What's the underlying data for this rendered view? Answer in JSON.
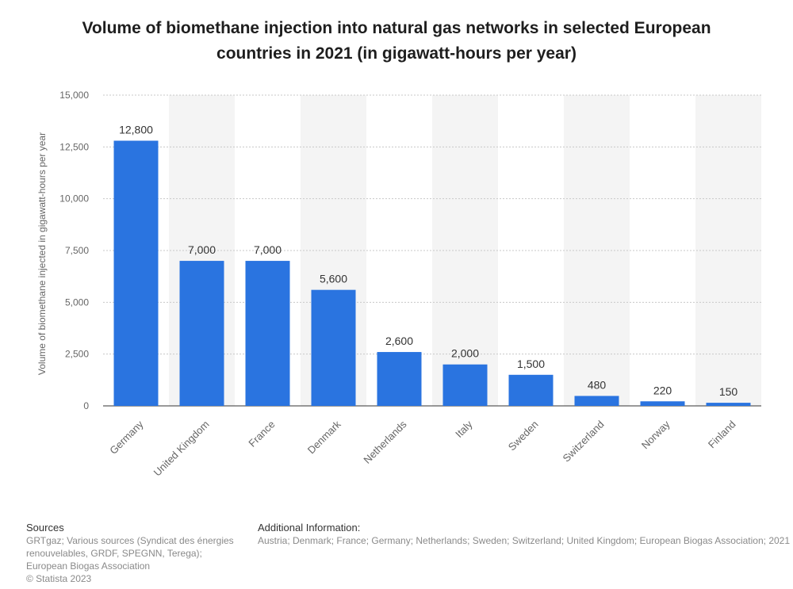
{
  "title": "Volume of biomethane injection into natural gas networks in selected European countries in 2021 (in gigawatt-hours per year)",
  "chart_data": {
    "type": "bar",
    "categories": [
      "Germany",
      "United Kingdom",
      "France",
      "Denmark",
      "Netherlands",
      "Italy",
      "Sweden",
      "Switzerland",
      "Norway",
      "Finland"
    ],
    "values": [
      12800,
      7000,
      7000,
      5600,
      2600,
      2000,
      1500,
      480,
      220,
      150
    ],
    "value_labels": [
      "12,800",
      "7,000",
      "7,000",
      "5,600",
      "2,600",
      "2,000",
      "1,500",
      "480",
      "220",
      "150"
    ],
    "ylabel": "Volume of biomethane injected in gigawatt-hours per year",
    "xlabel": "",
    "ylim": [
      0,
      15000
    ],
    "yticks": [
      0,
      2500,
      5000,
      7500,
      10000,
      12500,
      15000
    ],
    "ytick_labels": [
      "0",
      "2,500",
      "5,000",
      "7,500",
      "10,000",
      "12,500",
      "15,000"
    ],
    "grid": true,
    "bar_color": "#2a74e0"
  },
  "footer": {
    "sources_heading": "Sources",
    "sources_text": [
      "GRTgaz; Various sources (Syndicat des énergies",
      "renouvelables, GRDF, SPEGNN, Terega);",
      "European Biogas Association",
      "© Statista 2023"
    ],
    "additional_heading": "Additional Information:",
    "additional_text": "Austria; Denmark; France; Germany; Netherlands; Sweden; Switzerland; United Kingdom; European Biogas Association; 2021"
  }
}
